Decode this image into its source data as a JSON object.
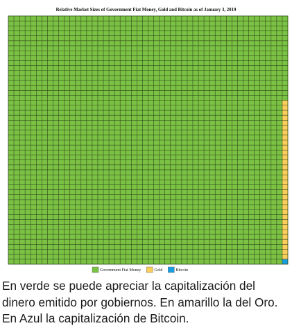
{
  "chart_data": {
    "type": "waffle",
    "title": "Relative Market Sizes of Government Fiat Money, Gold and Bitcoin as of January 3, 2019",
    "grid": {
      "rows": 50,
      "cols": 50
    },
    "series": [
      {
        "name": "Government Fiat Money",
        "cells": 2467,
        "color": "#7bc144"
      },
      {
        "name": "Gold",
        "cells": 32,
        "color": "#fbcd5a"
      },
      {
        "name": "Bitcoin",
        "cells": 1,
        "color": "#1a9ee2"
      }
    ],
    "legend_position": "bottom-center"
  },
  "caption": "En verde se puede apreciar la capitalización del dinero emitido por gobiernos. En amarillo la del Oro. En Azul la capitalización de Bitcoin."
}
